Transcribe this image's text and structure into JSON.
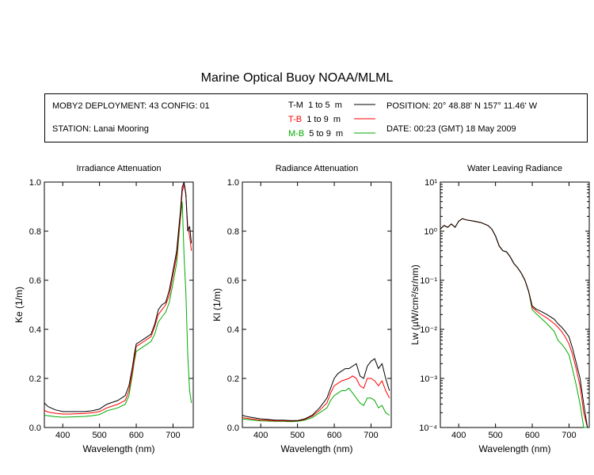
{
  "title": "Marine Optical Buoy NOAA/MLML",
  "header": {
    "deployment": "MOBY2 DEPLOYMENT: 43 CONFIG: 01",
    "station": "STATION: Lanai Mooring",
    "position": "POSITION: 20° 48.88' N   157° 11.46' W",
    "date": "DATE: 00:23 (GMT) 18 May 2009",
    "legend": [
      {
        "code": "T-M",
        "range": "1 to 5",
        "unit": "m",
        "color": "#000000"
      },
      {
        "code": "T-B",
        "range": "1 to 9",
        "unit": "m",
        "color": "#ff0000"
      },
      {
        "code": "M-B",
        "range": "5 to 9",
        "unit": "m",
        "color": "#00aa00"
      }
    ]
  },
  "chart_data": [
    {
      "type": "line",
      "title": "Irradiance Attenuation",
      "xlabel": "Wavelength (nm)",
      "ylabel": "Ke  (1/m)",
      "xlim": [
        350,
        755
      ],
      "ylim": [
        0,
        1.0
      ],
      "xticks": [
        "400",
        "500",
        "600",
        "700"
      ],
      "yticks": [
        "0.0",
        "0.2",
        "0.4",
        "0.6",
        "0.8",
        "1.0"
      ],
      "x": [
        350,
        360,
        380,
        400,
        420,
        440,
        460,
        480,
        500,
        510,
        520,
        530,
        550,
        570,
        580,
        590,
        595,
        600,
        610,
        620,
        630,
        640,
        650,
        660,
        670,
        680,
        690,
        700,
        710,
        715,
        720,
        725,
        730,
        735,
        740,
        745,
        750
      ],
      "series": [
        {
          "name": "T-M",
          "color": "#000000",
          "values": [
            0.1,
            0.085,
            0.072,
            0.065,
            0.065,
            0.065,
            0.065,
            0.068,
            0.075,
            0.085,
            0.095,
            0.1,
            0.11,
            0.13,
            0.17,
            0.25,
            0.3,
            0.34,
            0.35,
            0.36,
            0.37,
            0.38,
            0.42,
            0.48,
            0.5,
            0.51,
            0.56,
            0.64,
            0.72,
            0.8,
            0.88,
            0.98,
            1.0,
            0.95,
            0.8,
            0.82,
            0.75
          ]
        },
        {
          "name": "T-B",
          "color": "#ff0000",
          "values": [
            0.07,
            0.063,
            0.058,
            0.055,
            0.055,
            0.056,
            0.057,
            0.06,
            0.065,
            0.072,
            0.08,
            0.085,
            0.095,
            0.11,
            0.15,
            0.23,
            0.28,
            0.33,
            0.34,
            0.35,
            0.36,
            0.37,
            0.41,
            0.46,
            0.48,
            0.5,
            0.54,
            0.62,
            0.7,
            0.78,
            0.86,
            0.96,
            0.99,
            0.95,
            0.82,
            0.78,
            0.72
          ]
        },
        {
          "name": "M-B",
          "color": "#00aa00",
          "values": [
            0.05,
            0.048,
            0.044,
            0.042,
            0.043,
            0.044,
            0.045,
            0.048,
            0.053,
            0.06,
            0.068,
            0.072,
            0.08,
            0.095,
            0.13,
            0.22,
            0.27,
            0.31,
            0.32,
            0.33,
            0.34,
            0.35,
            0.38,
            0.43,
            0.45,
            0.47,
            0.51,
            0.59,
            0.67,
            0.76,
            0.85,
            0.92,
            0.7,
            0.55,
            0.3,
            0.15,
            0.1
          ]
        }
      ]
    },
    {
      "type": "line",
      "title": "Radiance Attenuation",
      "xlabel": "Wavelength (nm)",
      "ylabel": "Kl  (1/m)",
      "xlim": [
        350,
        755
      ],
      "ylim": [
        0,
        1.0
      ],
      "xticks": [
        "400",
        "500",
        "600",
        "700"
      ],
      "yticks": [
        "0.0",
        "0.2",
        "0.4",
        "0.6",
        "0.8",
        "1.0"
      ],
      "x": [
        350,
        360,
        380,
        400,
        420,
        440,
        460,
        480,
        500,
        520,
        540,
        560,
        580,
        590,
        600,
        610,
        620,
        630,
        640,
        650,
        660,
        670,
        680,
        690,
        700,
        710,
        720,
        730,
        740,
        750
      ],
      "series": [
        {
          "name": "T-M",
          "color": "#000000",
          "values": [
            0.05,
            0.045,
            0.04,
            0.035,
            0.033,
            0.03,
            0.03,
            0.028,
            0.028,
            0.035,
            0.05,
            0.08,
            0.12,
            0.16,
            0.2,
            0.22,
            0.23,
            0.24,
            0.24,
            0.25,
            0.26,
            0.21,
            0.2,
            0.25,
            0.27,
            0.28,
            0.24,
            0.26,
            0.2,
            0.15
          ]
        },
        {
          "name": "T-B",
          "color": "#ff0000",
          "values": [
            0.04,
            0.038,
            0.034,
            0.03,
            0.029,
            0.027,
            0.027,
            0.026,
            0.027,
            0.033,
            0.046,
            0.07,
            0.1,
            0.14,
            0.17,
            0.18,
            0.19,
            0.195,
            0.2,
            0.21,
            0.2,
            0.17,
            0.16,
            0.2,
            0.2,
            0.19,
            0.17,
            0.19,
            0.15,
            0.12
          ]
        },
        {
          "name": "M-B",
          "color": "#00aa00",
          "values": [
            0.035,
            0.033,
            0.03,
            0.027,
            0.026,
            0.025,
            0.025,
            0.024,
            0.025,
            0.03,
            0.04,
            0.06,
            0.08,
            0.11,
            0.13,
            0.14,
            0.15,
            0.15,
            0.16,
            0.14,
            0.12,
            0.1,
            0.09,
            0.12,
            0.12,
            0.11,
            0.08,
            0.09,
            0.06,
            0.05
          ]
        }
      ]
    },
    {
      "type": "line",
      "title": "Water Leaving Radiance",
      "xlabel": "Wavelength (nm)",
      "ylabel": "Lw  (µW/cm²/sr/nm)",
      "yscale": "log",
      "xlim": [
        350,
        755
      ],
      "ylim": [
        0.0001,
        10
      ],
      "xticks": [
        "400",
        "500",
        "600",
        "700"
      ],
      "yticks": [
        "10⁻⁴",
        "10⁻³",
        "10⁻²",
        "10⁻¹",
        "10⁰",
        "10¹"
      ],
      "x": [
        350,
        360,
        370,
        380,
        390,
        400,
        410,
        420,
        440,
        460,
        480,
        490,
        500,
        510,
        520,
        530,
        540,
        550,
        560,
        570,
        580,
        590,
        600,
        610,
        620,
        640,
        660,
        670,
        680,
        690,
        700,
        710,
        720,
        730,
        740,
        750
      ],
      "series": [
        {
          "name": "T-M",
          "color": "#000000",
          "values": [
            1.1,
            1.3,
            1.2,
            1.4,
            1.2,
            1.6,
            1.8,
            1.7,
            1.6,
            1.5,
            1.3,
            1.1,
            0.8,
            0.5,
            0.4,
            0.38,
            0.3,
            0.22,
            0.18,
            0.14,
            0.1,
            0.06,
            0.03,
            0.026,
            0.024,
            0.02,
            0.016,
            0.013,
            0.011,
            0.009,
            0.007,
            0.004,
            0.002,
            0.001,
            0.0003,
            0.0001
          ]
        },
        {
          "name": "T-B",
          "color": "#ff0000",
          "values": [
            1.1,
            1.3,
            1.2,
            1.4,
            1.2,
            1.6,
            1.8,
            1.7,
            1.6,
            1.5,
            1.3,
            1.1,
            0.8,
            0.5,
            0.4,
            0.38,
            0.3,
            0.22,
            0.18,
            0.14,
            0.1,
            0.06,
            0.028,
            0.024,
            0.021,
            0.017,
            0.013,
            0.011,
            0.009,
            0.007,
            0.005,
            0.003,
            0.0015,
            0.0007,
            0.0002,
            0.0001
          ]
        },
        {
          "name": "M-B",
          "color": "#00aa00",
          "values": [
            1.1,
            1.3,
            1.2,
            1.4,
            1.2,
            1.6,
            1.8,
            1.7,
            1.6,
            1.5,
            1.3,
            1.1,
            0.8,
            0.5,
            0.4,
            0.38,
            0.3,
            0.22,
            0.18,
            0.14,
            0.1,
            0.06,
            0.025,
            0.021,
            0.018,
            0.013,
            0.009,
            0.006,
            0.005,
            0.004,
            0.003,
            0.0015,
            0.0007,
            0.0003,
            0.0001,
            0.0001
          ]
        }
      ]
    }
  ]
}
